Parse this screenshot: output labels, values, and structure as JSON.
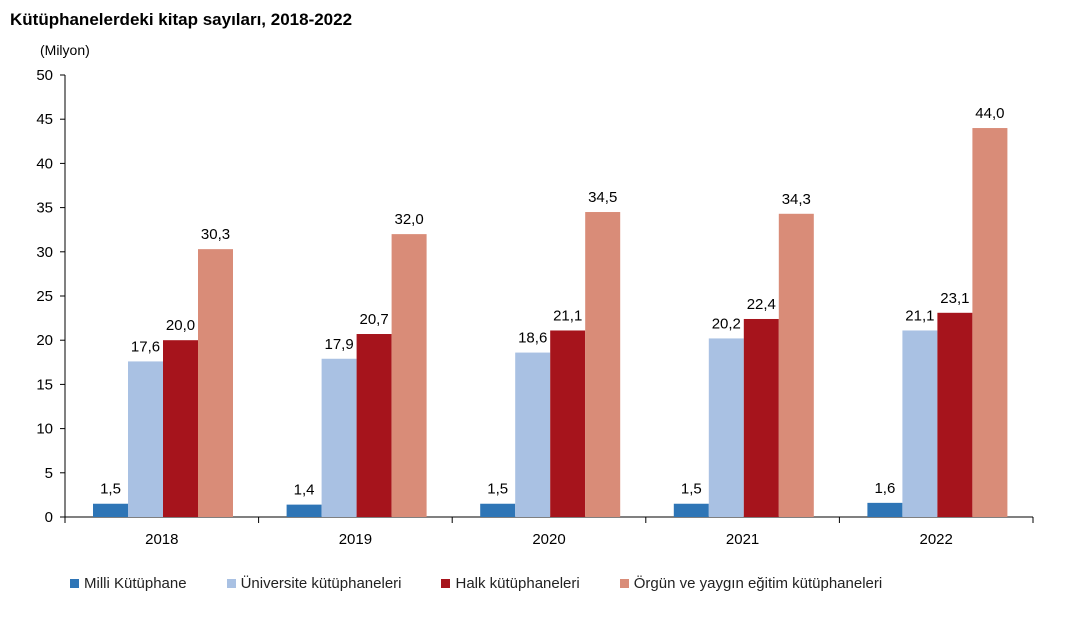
{
  "title": "Kütüphanelerdeki kitap sayıları, 2018-2022",
  "unit": "(Milyon)",
  "chart_data": {
    "type": "bar",
    "title": "Kütüphanelerdeki kitap sayıları, 2018-2022",
    "ylabel": "(Milyon)",
    "xlabel": "",
    "ylim": [
      0,
      50
    ],
    "yticks": [
      "0",
      "5",
      "10",
      "15",
      "20",
      "25",
      "30",
      "35",
      "40",
      "45",
      "50"
    ],
    "grid": false,
    "legend_position": "bottom",
    "categories": [
      "2018",
      "2019",
      "2020",
      "2021",
      "2022"
    ],
    "series": [
      {
        "name": "Milli Kütüphane",
        "color": "#2e75b6",
        "values": [
          1.5,
          1.4,
          1.5,
          1.5,
          1.6
        ],
        "labels": [
          "1,5",
          "1,4",
          "1,5",
          "1,5",
          "1,6"
        ]
      },
      {
        "name": "Üniversite kütüphaneleri",
        "color": "#a9c1e3",
        "values": [
          17.6,
          17.9,
          18.6,
          20.2,
          21.1
        ],
        "labels": [
          "17,6",
          "17,9",
          "18,6",
          "20,2",
          "21,1"
        ]
      },
      {
        "name": "Halk kütüphaneleri",
        "color": "#a6141c",
        "values": [
          20.0,
          20.7,
          21.1,
          22.4,
          23.1
        ],
        "labels": [
          "20,0",
          "20,7",
          "21,1",
          "22,4",
          "23,1"
        ]
      },
      {
        "name": "Örgün ve yaygın eğitim kütüphaneleri",
        "color": "#d98c78",
        "values": [
          30.3,
          32.0,
          34.5,
          34.3,
          44.0
        ],
        "labels": [
          "30,3",
          "32,0",
          "34,5",
          "34,3",
          "44,0"
        ]
      }
    ]
  }
}
